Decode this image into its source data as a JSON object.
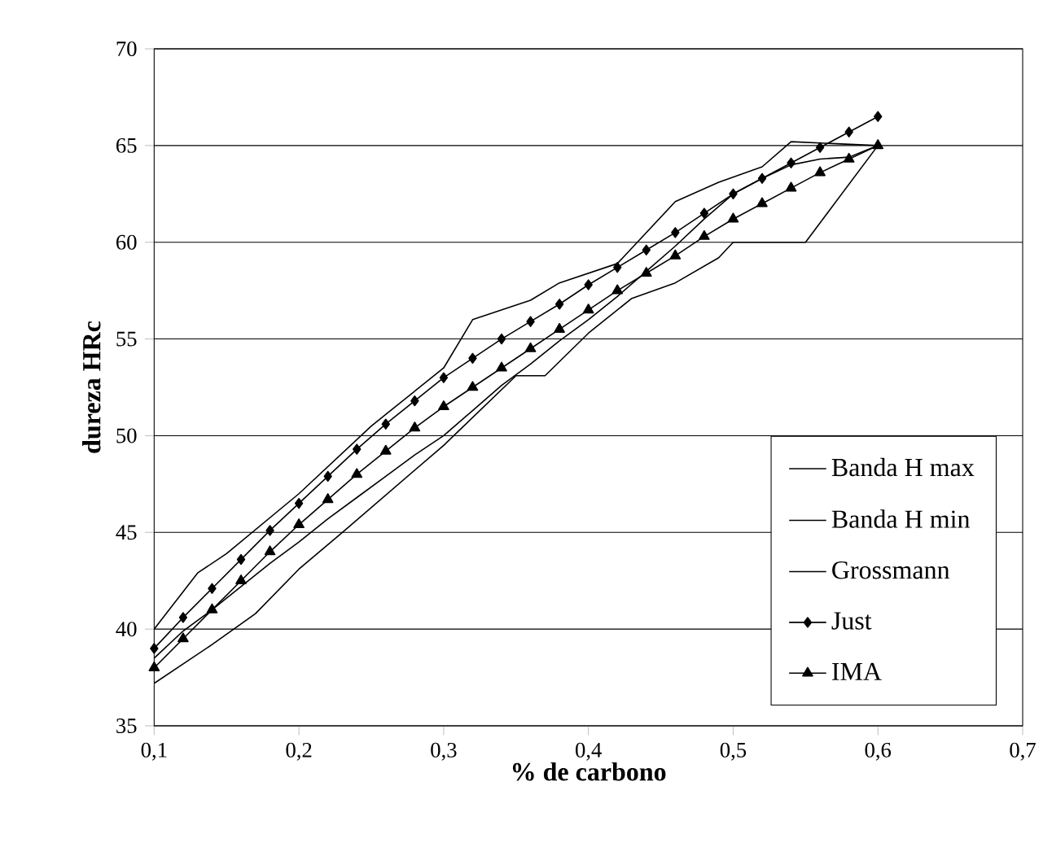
{
  "chart_data": {
    "type": "line",
    "xlabel": "% de carbono",
    "ylabel": "dureza HRc",
    "xlim": [
      0.1,
      0.7
    ],
    "ylim": [
      35,
      70
    ],
    "xticks": [
      {
        "value": 0.1,
        "label": "0,1"
      },
      {
        "value": 0.2,
        "label": "0,2"
      },
      {
        "value": 0.3,
        "label": "0,3"
      },
      {
        "value": 0.4,
        "label": "0,4"
      },
      {
        "value": 0.5,
        "label": "0,5"
      },
      {
        "value": 0.6,
        "label": "0,6"
      },
      {
        "value": 0.7,
        "label": "0,7"
      }
    ],
    "yticks": [
      35,
      40,
      45,
      50,
      55,
      60,
      65,
      70
    ],
    "grid": "y",
    "legend": "bottom right",
    "series": [
      {
        "name": "Banda H max",
        "color": "#000000",
        "marker": "none",
        "x": [
          0.1,
          0.13,
          0.15,
          0.2,
          0.25,
          0.3,
          0.32,
          0.36,
          0.38,
          0.42,
          0.46,
          0.49,
          0.52,
          0.54,
          0.6
        ],
        "values": [
          40,
          42.9,
          43.9,
          47,
          50.5,
          53.5,
          56,
          57,
          57.9,
          58.9,
          62.1,
          63.1,
          63.9,
          65.2,
          65
        ]
      },
      {
        "name": "Banda H min",
        "color": "#000000",
        "marker": "none",
        "x": [
          0.1,
          0.14,
          0.17,
          0.2,
          0.23,
          0.3,
          0.35,
          0.37,
          0.4,
          0.43,
          0.46,
          0.49,
          0.5,
          0.55,
          0.6
        ],
        "values": [
          37.2,
          39.2,
          40.8,
          43.1,
          45,
          49.5,
          53.1,
          53.1,
          55.3,
          57.1,
          57.9,
          59.2,
          60,
          60,
          65
        ]
      },
      {
        "name": "Grossmann",
        "color": "#000000",
        "marker": "none",
        "x": [
          0.1,
          0.12,
          0.14,
          0.16,
          0.18,
          0.2,
          0.22,
          0.24,
          0.26,
          0.28,
          0.3,
          0.32,
          0.34,
          0.36,
          0.38,
          0.4,
          0.42,
          0.44,
          0.46,
          0.48,
          0.5,
          0.52,
          0.54,
          0.56,
          0.58,
          0.6
        ],
        "values": [
          38.5,
          39.9,
          41,
          42.2,
          43.4,
          44.5,
          45.7,
          46.8,
          47.9,
          49,
          50,
          51.3,
          52.6,
          53.7,
          54.9,
          56,
          57.2,
          58.5,
          59.8,
          61.2,
          62.5,
          63.3,
          64,
          64.3,
          64.4,
          65
        ]
      },
      {
        "name": "Just",
        "color": "#000000",
        "marker": "diamond",
        "x": [
          0.1,
          0.12,
          0.14,
          0.16,
          0.18,
          0.2,
          0.22,
          0.24,
          0.26,
          0.28,
          0.3,
          0.32,
          0.34,
          0.36,
          0.38,
          0.4,
          0.42,
          0.44,
          0.46,
          0.48,
          0.5,
          0.52,
          0.54,
          0.56,
          0.58,
          0.6
        ],
        "values": [
          39,
          40.6,
          42.1,
          43.6,
          45.1,
          46.5,
          47.9,
          49.3,
          50.6,
          51.8,
          53,
          54,
          55,
          55.9,
          56.8,
          57.8,
          58.7,
          59.6,
          60.5,
          61.5,
          62.5,
          63.3,
          64.1,
          64.9,
          65.7,
          66.5
        ]
      },
      {
        "name": "IMA",
        "color": "#000000",
        "marker": "triangle",
        "x": [
          0.1,
          0.12,
          0.14,
          0.16,
          0.18,
          0.2,
          0.22,
          0.24,
          0.26,
          0.28,
          0.3,
          0.32,
          0.34,
          0.36,
          0.38,
          0.4,
          0.42,
          0.44,
          0.46,
          0.48,
          0.5,
          0.52,
          0.54,
          0.56,
          0.58,
          0.6
        ],
        "values": [
          38,
          39.5,
          41,
          42.5,
          44,
          45.4,
          46.7,
          48,
          49.2,
          50.4,
          51.5,
          52.5,
          53.5,
          54.5,
          55.5,
          56.5,
          57.5,
          58.4,
          59.3,
          60.3,
          61.2,
          62,
          62.8,
          63.6,
          64.3,
          65
        ]
      }
    ]
  }
}
